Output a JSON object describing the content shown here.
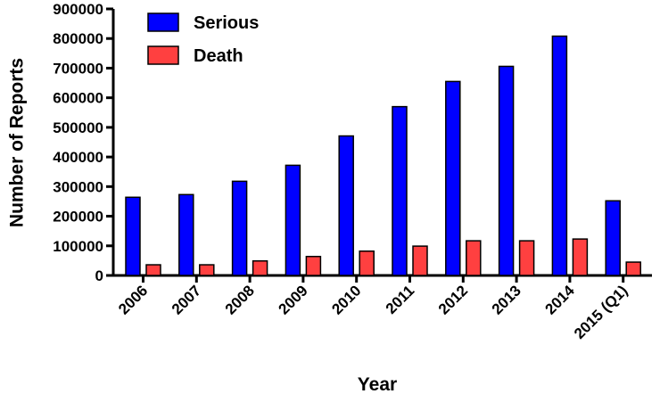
{
  "chart_data": {
    "type": "bar",
    "title": "",
    "xlabel": "Year",
    "ylabel": "Number of Reports",
    "categories": [
      "2006",
      "2007",
      "2008",
      "2009",
      "2010",
      "2011",
      "2012",
      "2013",
      "2014",
      "2015 (Q1)"
    ],
    "series": [
      {
        "name": "Serious",
        "color": "#0000ff",
        "values": [
          264000,
          273000,
          318000,
          372000,
          471000,
          570000,
          655000,
          706000,
          808000,
          252000
        ]
      },
      {
        "name": "Death",
        "color": "#ff4040",
        "values": [
          36000,
          36000,
          49000,
          64000,
          82000,
          99000,
          117000,
          117000,
          123000,
          45000
        ]
      }
    ],
    "ylim": [
      0,
      900000
    ],
    "yticks": [
      "0",
      "100000",
      "200000",
      "300000",
      "400000",
      "500000",
      "600000",
      "700000",
      "800000",
      "900000"
    ],
    "grid": false,
    "legend_position": "top-left"
  }
}
